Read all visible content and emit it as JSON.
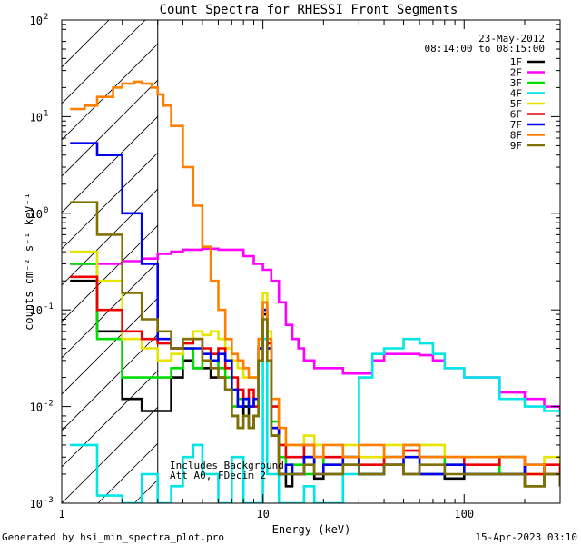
{
  "chart_data": {
    "type": "line",
    "title": "Count Spectra for RHESSI Front Segments",
    "date": "23-May-2012",
    "time_range": "08:14:00 to 08:15:00",
    "xlabel": "Energy (keV)",
    "ylabel": "counts cm⁻² s⁻¹ keV⁻¹",
    "xscale": "log",
    "yscale": "log",
    "xlim": [
      1,
      300
    ],
    "ylim": [
      0.001,
      100
    ],
    "x_ticks": [
      {
        "value": 1,
        "label": "1"
      },
      {
        "value": 10,
        "label": "10"
      },
      {
        "value": 100,
        "label": "100"
      }
    ],
    "y_ticks": [
      {
        "value": 0.001,
        "base": "10",
        "exp": "-3"
      },
      {
        "value": 0.01,
        "base": "10",
        "exp": "-2"
      },
      {
        "value": 0.1,
        "base": "10",
        "exp": "-1"
      },
      {
        "value": 1,
        "base": "10",
        "exp": "0"
      },
      {
        "value": 10,
        "base": "10",
        "exp": "1"
      },
      {
        "value": 100,
        "base": "10",
        "exp": "2"
      }
    ],
    "shaded_region": {
      "x_from": 1,
      "x_to": 3,
      "style": "hatched"
    },
    "annotations": [
      "Includes Background",
      "Att A0, FDecim 2"
    ],
    "legend_position": "top-right",
    "series": [
      {
        "name": "1F",
        "color": "#000000",
        "x": [
          1.1,
          1.5,
          2.0,
          2.5,
          3.0,
          3.5,
          4.0,
          4.5,
          5.0,
          5.5,
          6.0,
          6.5,
          7.0,
          7.5,
          8.0,
          8.5,
          9.0,
          9.5,
          10.0,
          10.5,
          11.0,
          12.0,
          13.0,
          14.0,
          16.0,
          18.0,
          20.0,
          25.0,
          30.0,
          40.0,
          50.0,
          60.0,
          80.0,
          100.0,
          150.0,
          200.0,
          250.0,
          300.0
        ],
        "y": [
          0.2,
          0.06,
          0.012,
          0.009,
          0.009,
          0.02,
          0.03,
          0.025,
          0.025,
          0.02,
          0.02,
          0.015,
          0.008,
          0.006,
          0.01,
          0.006,
          0.008,
          0.03,
          0.09,
          0.04,
          0.005,
          0.002,
          0.0015,
          0.002,
          0.003,
          0.0018,
          0.002,
          0.0025,
          0.002,
          0.0025,
          0.002,
          0.002,
          0.0018,
          0.002,
          0.002,
          0.0015,
          0.002,
          0.0015
        ]
      },
      {
        "name": "2F",
        "color": "#ff00ff",
        "x": [
          1.1,
          1.5,
          2.0,
          2.5,
          3.0,
          3.5,
          4.0,
          5.0,
          6.0,
          7.0,
          8.0,
          9.0,
          10.0,
          11.0,
          12.0,
          13.0,
          14.0,
          15.0,
          16.0,
          18.0,
          20.0,
          25.0,
          30.0,
          35.0,
          40.0,
          50.0,
          60.0,
          70.0,
          80.0,
          100.0,
          150.0,
          200.0,
          250.0,
          300.0
        ],
        "y": [
          0.3,
          0.3,
          0.32,
          0.34,
          0.38,
          0.4,
          0.42,
          0.43,
          0.42,
          0.42,
          0.36,
          0.3,
          0.26,
          0.2,
          0.12,
          0.07,
          0.05,
          0.04,
          0.03,
          0.025,
          0.025,
          0.022,
          0.022,
          0.03,
          0.035,
          0.035,
          0.034,
          0.03,
          0.025,
          0.02,
          0.014,
          0.012,
          0.01,
          0.009
        ]
      },
      {
        "name": "3F",
        "color": "#00dd00",
        "x": [
          1.1,
          1.5,
          2.0,
          2.5,
          3.0,
          3.5,
          4.0,
          4.5,
          5.0,
          5.5,
          6.0,
          6.5,
          7.0,
          7.5,
          8.0,
          8.5,
          9.0,
          9.5,
          10.0,
          10.5,
          11.0,
          12.0,
          13.0,
          14.0,
          16.0,
          18.0,
          20.0,
          25.0,
          30.0,
          40.0,
          50.0,
          60.0,
          80.0,
          100.0,
          150.0,
          200.0,
          250.0,
          300.0
        ],
        "y": [
          0.3,
          0.05,
          0.02,
          0.02,
          0.02,
          0.025,
          0.04,
          0.025,
          0.03,
          0.03,
          0.025,
          0.02,
          0.01,
          0.012,
          0.012,
          0.01,
          0.01,
          0.04,
          0.12,
          0.05,
          0.007,
          0.003,
          0.002,
          0.0025,
          0.002,
          0.003,
          0.0025,
          0.003,
          0.002,
          0.003,
          0.004,
          0.003,
          0.0025,
          0.002,
          0.003,
          0.002,
          0.002,
          0.0015
        ]
      },
      {
        "name": "4F",
        "color": "#00e5e5",
        "x": [
          1.1,
          1.4,
          1.5,
          2.0,
          2.5,
          3.0,
          3.5,
          4.0,
          4.5,
          5.0,
          6.0,
          7.0,
          8.0,
          9.0,
          10.0,
          10.5,
          11.0,
          12.0,
          14.0,
          16.0,
          18.0,
          20.0,
          25.0,
          30.0,
          35.0,
          40.0,
          50.0,
          60.0,
          70.0,
          80.0,
          100.0,
          150.0,
          200.0,
          250.0,
          300.0
        ],
        "y": [
          0.004,
          0.004,
          0.0012,
          0.001,
          0.002,
          0.001,
          0.0015,
          0.003,
          0.004,
          0.002,
          0.001,
          0.003,
          0.001,
          0.001,
          0.05,
          0.002,
          0.002,
          0.001,
          0.001,
          0.0015,
          0.001,
          0.001,
          0.002,
          0.02,
          0.035,
          0.04,
          0.05,
          0.045,
          0.035,
          0.025,
          0.02,
          0.012,
          0.01,
          0.009,
          0.008
        ]
      },
      {
        "name": "5F",
        "color": "#e5e500",
        "x": [
          1.1,
          1.5,
          2.0,
          2.5,
          3.0,
          3.5,
          4.0,
          4.5,
          5.0,
          5.5,
          6.0,
          6.5,
          7.0,
          7.5,
          8.0,
          8.5,
          9.0,
          9.5,
          10.0,
          10.5,
          11.0,
          12.0,
          13.0,
          14.0,
          16.0,
          18.0,
          20.0,
          25.0,
          30.0,
          40.0,
          50.0,
          60.0,
          80.0,
          100.0,
          150.0,
          200.0,
          250.0,
          300.0
        ],
        "y": [
          0.4,
          0.2,
          0.05,
          0.04,
          0.03,
          0.035,
          0.05,
          0.06,
          0.055,
          0.06,
          0.05,
          0.04,
          0.03,
          0.025,
          0.02,
          0.02,
          0.02,
          0.05,
          0.15,
          0.06,
          0.012,
          0.006,
          0.004,
          0.004,
          0.005,
          0.004,
          0.003,
          0.004,
          0.003,
          0.004,
          0.003,
          0.004,
          0.003,
          0.003,
          0.003,
          0.002,
          0.003,
          0.002
        ]
      },
      {
        "name": "6F",
        "color": "#ee0000",
        "x": [
          1.1,
          1.5,
          2.0,
          2.5,
          3.0,
          3.5,
          4.0,
          4.5,
          5.0,
          5.5,
          6.0,
          6.5,
          7.0,
          7.5,
          8.0,
          8.5,
          9.0,
          9.5,
          10.0,
          10.5,
          11.0,
          12.0,
          13.0,
          14.0,
          16.0,
          18.0,
          20.0,
          25.0,
          30.0,
          40.0,
          50.0,
          60.0,
          80.0,
          100.0,
          150.0,
          200.0,
          250.0,
          300.0
        ],
        "y": [
          0.22,
          0.1,
          0.06,
          0.05,
          0.045,
          0.04,
          0.045,
          0.05,
          0.04,
          0.035,
          0.04,
          0.025,
          0.02,
          0.015,
          0.012,
          0.015,
          0.01,
          0.04,
          0.1,
          0.045,
          0.01,
          0.004,
          0.003,
          0.003,
          0.004,
          0.003,
          0.003,
          0.003,
          0.0025,
          0.003,
          0.0035,
          0.003,
          0.003,
          0.0025,
          0.003,
          0.002,
          0.0025,
          0.002
        ]
      },
      {
        "name": "7F",
        "color": "#0000ee",
        "x": [
          1.1,
          1.5,
          2.0,
          2.5,
          3.0,
          3.5,
          4.0,
          4.5,
          5.0,
          5.5,
          6.0,
          6.5,
          7.0,
          7.5,
          8.0,
          8.5,
          9.0,
          9.5,
          10.0,
          10.5,
          11.0,
          12.0,
          13.0,
          14.0,
          16.0,
          18.0,
          20.0,
          25.0,
          30.0,
          40.0,
          50.0,
          60.0,
          80.0,
          100.0,
          150.0,
          200.0,
          250.0,
          300.0
        ],
        "y": [
          5.3,
          4.0,
          1.0,
          0.3,
          0.05,
          0.04,
          0.04,
          0.04,
          0.035,
          0.03,
          0.035,
          0.03,
          0.015,
          0.01,
          0.012,
          0.01,
          0.012,
          0.04,
          0.1,
          0.04,
          0.006,
          0.002,
          0.0025,
          0.002,
          0.003,
          0.002,
          0.0025,
          0.003,
          0.002,
          0.0025,
          0.003,
          0.002,
          0.0025,
          0.002,
          0.002,
          0.0025,
          0.002,
          0.0015
        ]
      },
      {
        "name": "8F",
        "color": "#ff8000",
        "x": [
          1.1,
          1.3,
          1.5,
          1.8,
          2.0,
          2.3,
          2.5,
          2.8,
          3.0,
          3.2,
          3.5,
          4.0,
          4.5,
          5.0,
          5.5,
          6.0,
          6.5,
          7.0,
          7.5,
          8.0,
          8.5,
          9.0,
          9.5,
          10.0,
          10.5,
          11.0,
          12.0,
          13.0,
          14.0,
          16.0,
          18.0,
          20.0,
          25.0,
          30.0,
          40.0,
          50.0,
          60.0,
          80.0,
          100.0,
          150.0,
          200.0,
          250.0,
          300.0
        ],
        "y": [
          12,
          13,
          16,
          20,
          22,
          23,
          22,
          20,
          17,
          13,
          8,
          3,
          1.2,
          0.45,
          0.2,
          0.1,
          0.05,
          0.035,
          0.03,
          0.025,
          0.02,
          0.02,
          0.05,
          0.12,
          0.05,
          0.012,
          0.006,
          0.004,
          0.004,
          0.004,
          0.003,
          0.004,
          0.003,
          0.004,
          0.003,
          0.004,
          0.003,
          0.003,
          0.003,
          0.003,
          0.0025,
          0.002,
          0.002
        ]
      },
      {
        "name": "9F",
        "color": "#807000",
        "x": [
          1.1,
          1.5,
          2.0,
          2.5,
          3.0,
          3.5,
          4.0,
          4.5,
          5.0,
          5.5,
          6.0,
          6.5,
          7.0,
          7.5,
          8.0,
          8.5,
          9.0,
          9.5,
          10.0,
          10.5,
          11.0,
          12.0,
          13.0,
          14.0,
          16.0,
          18.0,
          20.0,
          25.0,
          30.0,
          40.0,
          50.0,
          60.0,
          80.0,
          100.0,
          150.0,
          200.0,
          250.0,
          300.0
        ],
        "y": [
          1.3,
          0.6,
          0.15,
          0.08,
          0.06,
          0.04,
          0.05,
          0.05,
          0.03,
          0.025,
          0.02,
          0.015,
          0.008,
          0.006,
          0.008,
          0.006,
          0.008,
          0.03,
          0.08,
          0.03,
          0.005,
          0.002,
          0.002,
          0.002,
          0.0025,
          0.002,
          0.002,
          0.0025,
          0.002,
          0.0025,
          0.002,
          0.0025,
          0.002,
          0.002,
          0.002,
          0.0015,
          0.002,
          0.0015
        ]
      }
    ]
  },
  "footer": {
    "generated_by": "Generated by hsi_min_spectra_plot.pro",
    "timestamp": "15-Apr-2023 03:10"
  }
}
